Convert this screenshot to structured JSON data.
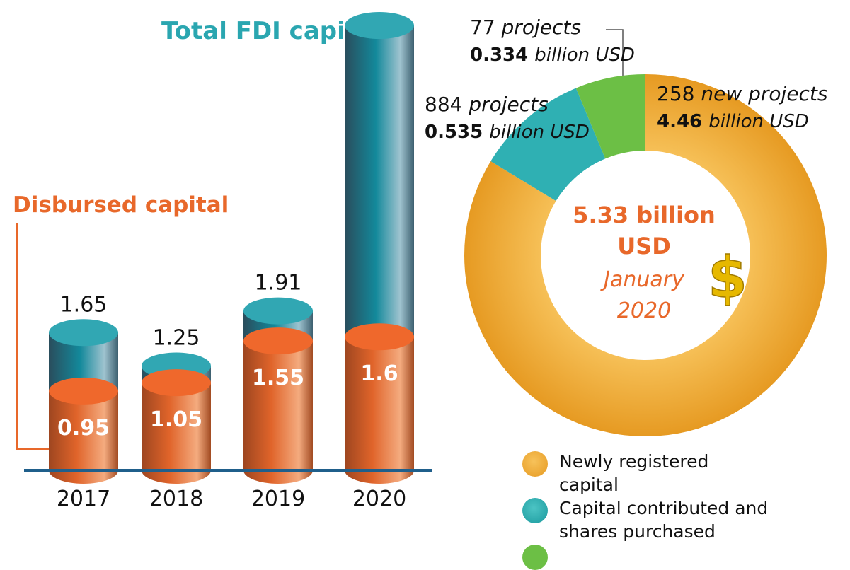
{
  "chart_data": [
    {
      "type": "bar",
      "style": "3d-cylinder",
      "categories": [
        "2017",
        "2018",
        "2019",
        "2020"
      ],
      "series": [
        {
          "name": "Total FDI capital",
          "values": [
            1.65,
            1.25,
            1.91,
            5.33
          ],
          "labels": [
            "1.65",
            "1.25",
            "1.91",
            ""
          ],
          "color": "#1a8a9b"
        },
        {
          "name": "Disbursed capital",
          "values": [
            0.95,
            1.05,
            1.55,
            1.6
          ],
          "labels": [
            "0.95",
            "1.05",
            "1.55",
            "1.6"
          ],
          "color": "#e8682a"
        }
      ],
      "baseline_color": "#1f5f8b"
    },
    {
      "type": "pie",
      "style": "donut",
      "center_value": "5.33 billion USD",
      "center_period": "January 2020",
      "slices": [
        {
          "name": "Newly registered capital",
          "value": 4.46,
          "projects": "258 new projects",
          "amount": "4.46",
          "unit": "billion USD",
          "color": "#f0a830"
        },
        {
          "name": "Capital contributed and shares purchased",
          "value": 0.535,
          "projects": "884 projects",
          "amount": "0.535",
          "unit": "billion USD",
          "color": "#2fb0b3"
        },
        {
          "name": "",
          "value": 0.334,
          "projects": "77 projects",
          "amount": "0.334",
          "unit": "billion USD",
          "color": "#6cbf45"
        }
      ],
      "legend": [
        "Newly registered capital",
        "Capital contributed and shares purchased"
      ],
      "icon": "dollar-sign-icon"
    }
  ]
}
